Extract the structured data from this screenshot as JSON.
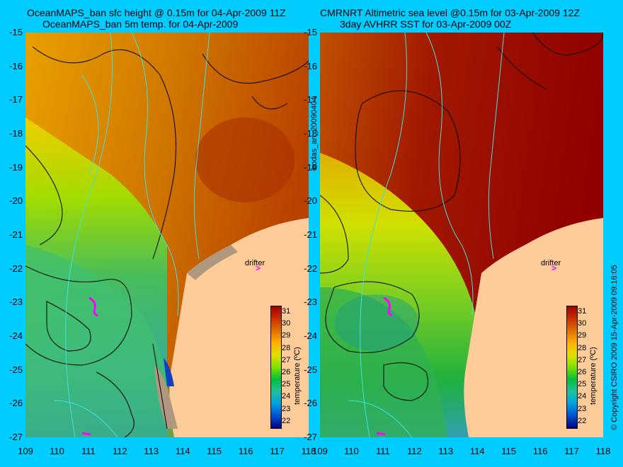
{
  "left_panel": {
    "title_line1": "OceanMAPS_ban sfc height @ 0.15m for 04-Apr-2009 11Z",
    "title_line2": "OceanMAPS_ban 5m temp. for 04-Apr-2009",
    "drifter_label": "drifter",
    "colorbar_title": "temperature (ºC)"
  },
  "right_panel": {
    "title_line1": "CMRNRT Altimetric sea level  @0.15m  for 03-Apr-2009 12Z",
    "title_line2": "3day AVHRR SST for 03-Apr-2009 00Z",
    "drifter_label": "drifter",
    "colorbar_title": "temperature (ºC)"
  },
  "middle_label": "bodas_an_20090404",
  "right_margin_label": "© Copyright CSIRO 2009   15-Apr-2009 09:16:05",
  "axes": {
    "y_ticks": [
      "-15",
      "-16",
      "-17",
      "-18",
      "-19",
      "-20",
      "-21",
      "-22",
      "-23",
      "-24",
      "-25",
      "-26",
      "-27"
    ],
    "x_ticks": [
      "109",
      "110",
      "111",
      "112",
      "113",
      "114",
      "115",
      "116",
      "117",
      "118"
    ],
    "lon_range": [
      109,
      118
    ],
    "lat_range": [
      -27,
      -15
    ]
  },
  "colorbar": {
    "ticks": [
      "31",
      "30",
      "29",
      "28",
      "27",
      "26",
      "25",
      "24",
      "23",
      "22"
    ],
    "range": [
      21.5,
      31.5
    ],
    "colors": [
      "#000080",
      "#0050d0",
      "#00a0e0",
      "#20c0a0",
      "#00c040",
      "#80e000",
      "#e0e000",
      "#ffb000",
      "#e07000",
      "#c83000",
      "#a00000"
    ]
  },
  "palette": {
    "background": "#00ccff",
    "land": "#ffcc99",
    "coast_land_grey": "#b09880",
    "ssh_contour": "#000000",
    "bathymetry_contour": "#40e0e0",
    "drifter": "#ff00ff"
  }
}
